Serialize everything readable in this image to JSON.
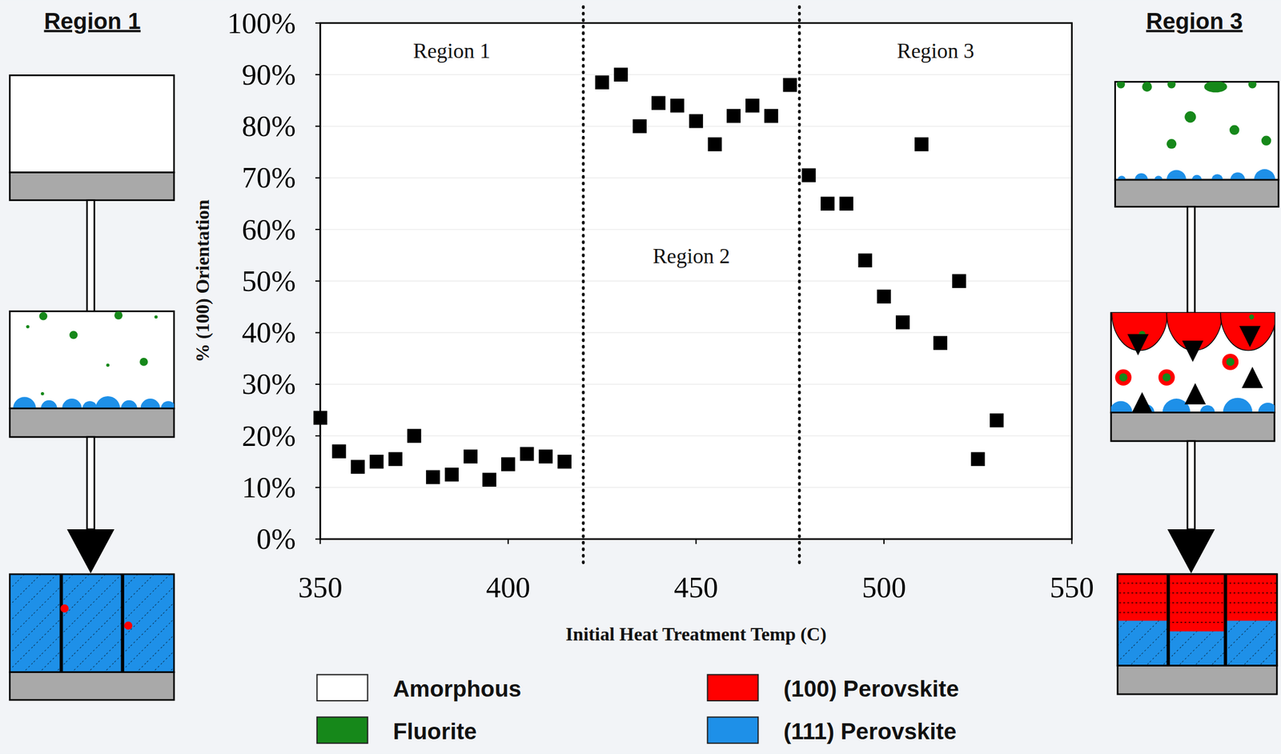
{
  "chart_data": {
    "type": "scatter",
    "x": [
      350,
      355,
      360,
      365,
      370,
      375,
      380,
      385,
      390,
      395,
      400,
      405,
      410,
      415,
      425,
      430,
      435,
      440,
      445,
      450,
      455,
      460,
      465,
      470,
      475,
      480,
      485,
      490,
      495,
      500,
      505,
      510,
      515,
      520,
      525,
      530
    ],
    "values": [
      23.5,
      17,
      14,
      15,
      15.5,
      20,
      12,
      12.5,
      16,
      11.5,
      14.5,
      16.5,
      16,
      15,
      88.5,
      90,
      80,
      84.5,
      84,
      81,
      76.5,
      82,
      84,
      82,
      88,
      70.5,
      65,
      65,
      54,
      47,
      42,
      76.5,
      38,
      50,
      15.5,
      23
    ],
    "color": "#000000",
    "marker": "square",
    "xlabel": "Initial Heat Treatment Temp (C)",
    "ylabel": "% (100) Orientation",
    "xlim": [
      350,
      550
    ],
    "xticks": [
      350,
      400,
      450,
      500,
      550
    ],
    "ylim": [
      0,
      100
    ],
    "yticks": [
      {
        "value": 0,
        "label": "0%"
      },
      {
        "value": 10,
        "label": "10%"
      },
      {
        "value": 20,
        "label": "20%"
      },
      {
        "value": 30,
        "label": "30%"
      },
      {
        "value": 40,
        "label": "40%"
      },
      {
        "value": 50,
        "label": "50%"
      },
      {
        "value": 60,
        "label": "60%"
      },
      {
        "value": 70,
        "label": "70%"
      },
      {
        "value": 80,
        "label": "80%"
      },
      {
        "value": 90,
        "label": "90%"
      },
      {
        "value": 100,
        "label": "100%"
      }
    ],
    "grid": true,
    "annotations": [
      "Region 1",
      "Region 2",
      "Region 3"
    ],
    "dividers": [
      420,
      477.5
    ]
  },
  "diagrams": [
    {
      "title": "Region 1"
    },
    {
      "title": "Region 3"
    }
  ],
  "legend_items": [
    {
      "label": "Amorphous",
      "color": "#ffffff"
    },
    {
      "label": "Fluorite",
      "color": "#16881a"
    },
    {
      "label": "(100) Perovskite",
      "color": "#ff0000"
    },
    {
      "label": "(111) Perovskite",
      "color": "#1e90e8"
    }
  ]
}
